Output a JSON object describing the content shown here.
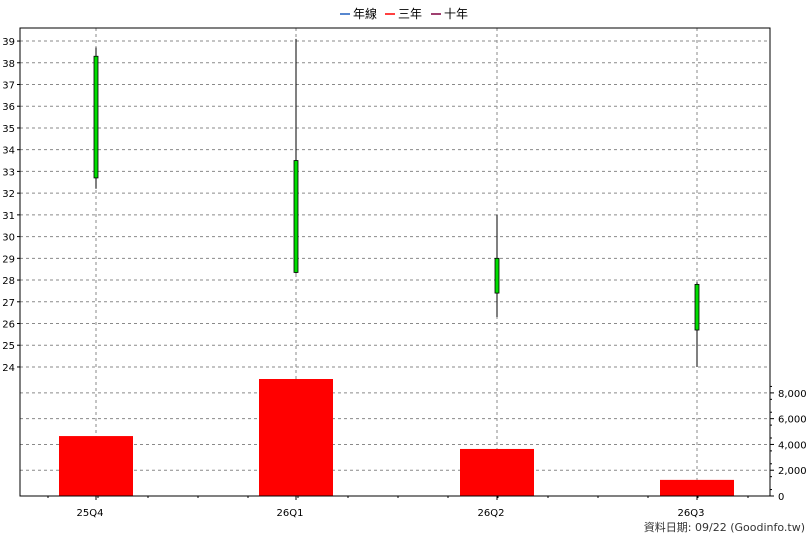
{
  "chart_data": {
    "type": "candlestick",
    "legend": [
      {
        "label": "年線",
        "color": "#1f5fbf"
      },
      {
        "label": "三年",
        "color": "#ff0000"
      },
      {
        "label": "十年",
        "color": "#800040"
      }
    ],
    "categories": [
      "25Q4",
      "26Q1",
      "26Q2",
      "26Q3"
    ],
    "price_axis": {
      "range": [
        23.4,
        39.6
      ],
      "ticks": [
        24,
        25,
        26,
        27,
        28,
        29,
        30,
        31,
        32,
        33,
        34,
        35,
        36,
        37,
        38,
        39
      ]
    },
    "volume_axis": {
      "range": [
        0,
        9000
      ],
      "ticks": [
        0,
        2000,
        4000,
        6000,
        8000
      ],
      "tick_labels": [
        "0",
        "2,000",
        "4,000",
        "6,000",
        "8,000"
      ]
    },
    "candles": [
      {
        "period": "25Q4",
        "open": 32.7,
        "close": 38.3,
        "high": 38.7,
        "low": 32.2
      },
      {
        "period": "26Q1",
        "open": 28.35,
        "close": 33.5,
        "high": 39.1,
        "low": 28.3
      },
      {
        "period": "26Q2",
        "open": 27.4,
        "close": 29.0,
        "high": 31.0,
        "low": 26.3
      },
      {
        "period": "26Q3",
        "open": 25.7,
        "close": 27.8,
        "high": 27.9,
        "low": 24.0
      }
    ],
    "volume": [
      4650,
      9200,
      3650,
      1250
    ],
    "up_color": "#00dd00",
    "volume_color": "#ff0000",
    "grid": true
  },
  "footer": {
    "text": "資料日期: 09/22  (Goodinfo.tw)"
  }
}
